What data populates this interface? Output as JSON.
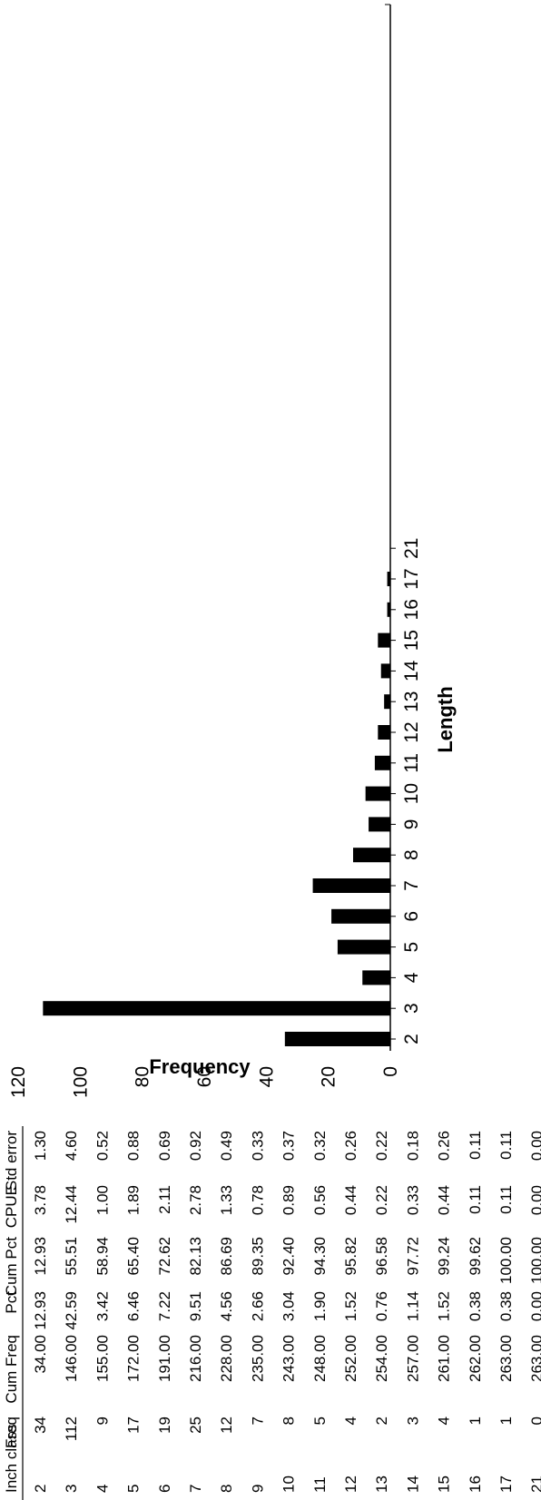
{
  "table": {
    "headers": [
      "Inch class",
      "Freq",
      "Cum Freq",
      "Pct",
      "Cum Pct",
      "CPUE",
      "Std error"
    ],
    "rows": [
      [
        "2",
        "34",
        "34.00",
        "12.93",
        "12.93",
        "3.78",
        "1.30"
      ],
      [
        "3",
        "112",
        "146.00",
        "42.59",
        "55.51",
        "12.44",
        "4.60"
      ],
      [
        "4",
        "9",
        "155.00",
        "3.42",
        "58.94",
        "1.00",
        "0.52"
      ],
      [
        "5",
        "17",
        "172.00",
        "6.46",
        "65.40",
        "1.89",
        "0.88"
      ],
      [
        "6",
        "19",
        "191.00",
        "7.22",
        "72.62",
        "2.11",
        "0.69"
      ],
      [
        "7",
        "25",
        "216.00",
        "9.51",
        "82.13",
        "2.78",
        "0.92"
      ],
      [
        "8",
        "12",
        "228.00",
        "4.56",
        "86.69",
        "1.33",
        "0.49"
      ],
      [
        "9",
        "7",
        "235.00",
        "2.66",
        "89.35",
        "0.78",
        "0.33"
      ],
      [
        "10",
        "8",
        "243.00",
        "3.04",
        "92.40",
        "0.89",
        "0.37"
      ],
      [
        "11",
        "5",
        "248.00",
        "1.90",
        "94.30",
        "0.56",
        "0.32"
      ],
      [
        "12",
        "4",
        "252.00",
        "1.52",
        "95.82",
        "0.44",
        "0.26"
      ],
      [
        "13",
        "2",
        "254.00",
        "0.76",
        "96.58",
        "0.22",
        "0.22"
      ],
      [
        "14",
        "3",
        "257.00",
        "1.14",
        "97.72",
        "0.33",
        "0.18"
      ],
      [
        "15",
        "4",
        "261.00",
        "1.52",
        "99.24",
        "0.44",
        "0.26"
      ],
      [
        "16",
        "1",
        "262.00",
        "0.38",
        "99.62",
        "0.11",
        "0.11"
      ],
      [
        "17",
        "1",
        "263.00",
        "0.38",
        "100.00",
        "0.11",
        "0.11"
      ],
      [
        "21",
        "0",
        "263.00",
        "0.00",
        "100.00",
        "0.00",
        "0.00"
      ]
    ]
  },
  "chart_data": {
    "type": "bar",
    "xlabel": "Length",
    "ylabel": "Frequency",
    "ylim": [
      0,
      120
    ],
    "yticks": [
      0,
      20,
      40,
      60,
      80,
      100,
      120
    ],
    "categories": [
      "2",
      "3",
      "4",
      "5",
      "6",
      "7",
      "8",
      "9",
      "10",
      "11",
      "12",
      "13",
      "14",
      "15",
      "16",
      "17",
      "21"
    ],
    "x_tick_labels": [
      "2",
      "3",
      "4",
      "5",
      "6",
      "7",
      "8",
      "9",
      "10",
      "11",
      "12",
      "13",
      "14",
      "15",
      "16",
      "17",
      "21"
    ],
    "values": [
      34,
      112,
      9,
      17,
      19,
      25,
      12,
      7,
      8,
      5,
      4,
      2,
      3,
      4,
      1,
      1,
      0
    ],
    "bar_color": "#000000",
    "grid": false,
    "legend": "none"
  }
}
